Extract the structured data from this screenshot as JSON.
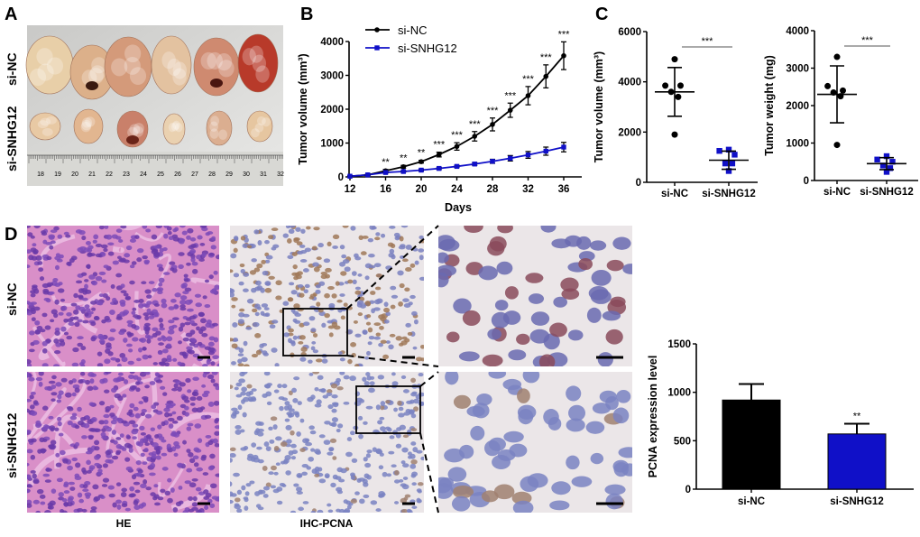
{
  "panels": {
    "A": {
      "label": "A",
      "row_labels": [
        "si-NC",
        "si-SNHG12"
      ],
      "ruler_numbers": [
        "18",
        "19",
        "20",
        "21",
        "22",
        "23",
        "24",
        "25",
        "26",
        "27",
        "28",
        "29",
        "30",
        "31",
        "32"
      ]
    },
    "B": {
      "label": "B"
    },
    "C": {
      "label": "C"
    },
    "D": {
      "label": "D",
      "row_labels": [
        "si-NC",
        "si-SNHG12"
      ],
      "column_labels": [
        "HE",
        "IHC-PCNA"
      ]
    }
  },
  "colors": {
    "si_nc": "#000000",
    "si_snhg12": "#1010c8"
  },
  "chart_data": [
    {
      "id": "B",
      "type": "line",
      "xlabel": "Days",
      "ylabel": "Tumor volume (mm³)",
      "xlim": [
        12,
        37
      ],
      "ylim": [
        0,
        4400
      ],
      "xticks": [
        12,
        16,
        20,
        24,
        28,
        32,
        36
      ],
      "yticks": [
        0,
        1000,
        2000,
        3000,
        4000
      ],
      "legend_position": "top-left",
      "x": [
        12,
        14,
        16,
        18,
        20,
        22,
        24,
        26,
        28,
        30,
        32,
        34,
        36
      ],
      "series": [
        {
          "name": "si-NC",
          "marker": "circle",
          "values": [
            20,
            60,
            180,
            300,
            450,
            660,
            900,
            1200,
            1550,
            1970,
            2400,
            2970,
            3580
          ],
          "errors": [
            10,
            20,
            40,
            40,
            40,
            70,
            110,
            140,
            190,
            210,
            270,
            340,
            410
          ]
        },
        {
          "name": "si-SNHG12",
          "marker": "square",
          "values": [
            20,
            60,
            130,
            160,
            200,
            250,
            310,
            380,
            460,
            550,
            650,
            760,
            880
          ],
          "errors": [
            10,
            15,
            20,
            20,
            25,
            30,
            30,
            40,
            60,
            80,
            100,
            120,
            140
          ]
        }
      ],
      "annotations": [
        "",
        "",
        "**",
        "**",
        "**",
        "***",
        "***",
        "***",
        "***",
        "***",
        "***",
        "***",
        "***"
      ]
    },
    {
      "id": "C1",
      "type": "scatter",
      "ylabel": "Tumor volume (mm³)",
      "ylim": [
        0,
        6000
      ],
      "yticks": [
        0,
        2000,
        4000,
        6000
      ],
      "categories": [
        "si-NC",
        "si-SNHG12"
      ],
      "points": [
        [
          4900,
          3850,
          3850,
          3600,
          3400,
          1900
        ],
        [
          1300,
          1250,
          1100,
          750,
          750,
          450
        ]
      ],
      "means": [
        3600,
        880
      ],
      "sd": [
        970,
        360
      ],
      "significance": "***"
    },
    {
      "id": "C2",
      "type": "scatter",
      "ylabel": "Tumor weight (mg)",
      "ylim": [
        0,
        4000
      ],
      "yticks": [
        0,
        1000,
        2000,
        3000,
        4000
      ],
      "categories": [
        "si-NC",
        "si-SNHG12"
      ],
      "points": [
        [
          3300,
          2520,
          2400,
          2350,
          2250,
          950
        ],
        [
          650,
          560,
          500,
          400,
          330,
          230
        ]
      ],
      "means": [
        2300,
        450
      ],
      "sd": [
        760,
        160
      ],
      "significance": "***"
    },
    {
      "id": "D-bar",
      "type": "bar",
      "ylabel": "PCNA expression level",
      "ylim": [
        0,
        1500
      ],
      "yticks": [
        0,
        500,
        1000,
        1500
      ],
      "categories": [
        "si-NC",
        "si-SNHG12"
      ],
      "values": [
        920,
        570
      ],
      "errors": [
        165,
        105
      ],
      "annotations": [
        "",
        "**"
      ]
    }
  ]
}
